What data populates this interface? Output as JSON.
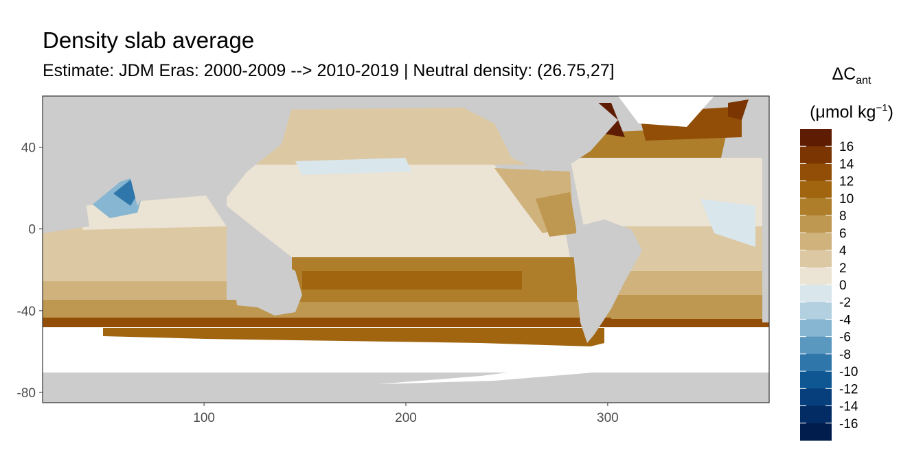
{
  "chart_data": {
    "type": "heatmap",
    "title": "Density slab average",
    "subtitle": "Estimate: JDM Eras: 2000-2009 --> 2010-2019 | Neutral density: (26.75,27]",
    "xlabel": "",
    "ylabel": "",
    "x_ticks": [
      "100",
      "200",
      "300"
    ],
    "y_ticks": [
      "40",
      "0",
      "-40",
      "-80"
    ],
    "xlim": [
      20,
      380
    ],
    "ylim": [
      -85,
      65
    ],
    "grid": true,
    "legend": {
      "title_main": "ΔC",
      "title_sub": "ant",
      "units_prefix": "(μmol kg",
      "units_exp": "−1",
      "units_suffix": ")",
      "position": "right",
      "labels": [
        "16",
        "14",
        "12",
        "10",
        "8",
        "6",
        "4",
        "2",
        "0",
        "-2",
        "-4",
        "-6",
        "-8",
        "-10",
        "-12",
        "-14",
        "-16"
      ],
      "colors": [
        "#5e1c02",
        "#7a3503",
        "#924e06",
        "#a1650f",
        "#ae7e2a",
        "#be9750",
        "#cfb27c",
        "#dcc8a3",
        "#ebe3d3",
        "#d9e6ec",
        "#b3d0e1",
        "#86b6d1",
        "#5a98bf",
        "#2f77ab",
        "#0f5793",
        "#073f7c",
        "#032c64",
        "#011d4e"
      ]
    },
    "colors": {
      "land": "#cccccc",
      "nodata": "#ffffff",
      "panel_border": "#333333",
      "grid": "#ebebeb"
    }
  }
}
